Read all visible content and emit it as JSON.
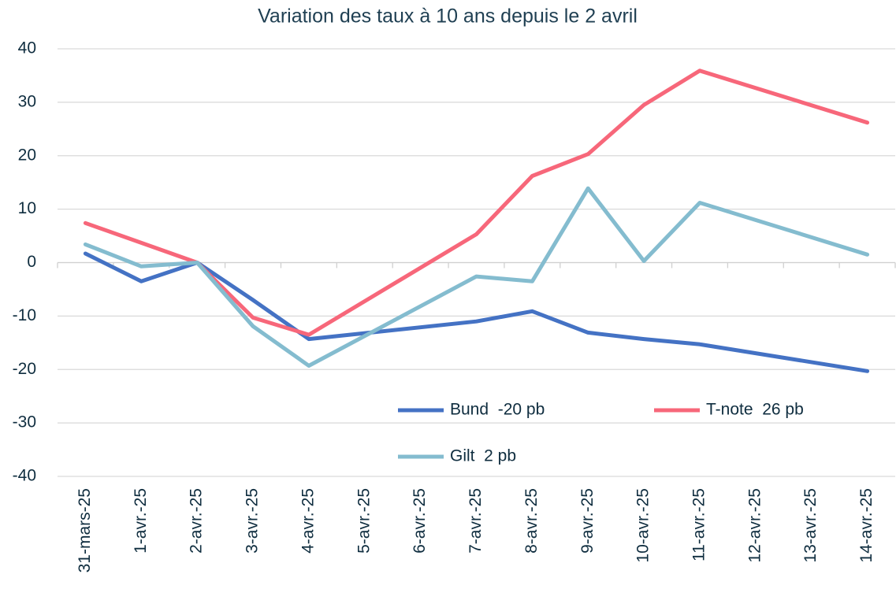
{
  "chart_data": {
    "type": "line",
    "title": "Variation des taux à 10 ans depuis le 2 avril",
    "categories": [
      "31-mars-25",
      "1-avr.-25",
      "2-avr.-25",
      "3-avr.-25",
      "4-avr.-25",
      "5-avr.-25",
      "6-avr.-25",
      "7-avr.-25",
      "8-avr.-25",
      "9-avr.-25",
      "10-avr.-25",
      "11-avr.-25",
      "12-avr.-25",
      "13-avr.-25",
      "14-avr.-25"
    ],
    "x": [
      "31-mars-25",
      "1-avr.-25",
      "2-avr.-25",
      "3-avr.-25",
      "4-avr.-25",
      "7-avr.-25",
      "8-avr.-25",
      "9-avr.-25",
      "10-avr.-25",
      "11-avr.-25",
      "14-avr.-25"
    ],
    "series": [
      {
        "name": "Bund  -20 pb",
        "color": "#4472c4",
        "values": [
          1.7,
          -3.5,
          0,
          -7,
          -14.3,
          -11,
          -9.1,
          -13.1,
          -14.3,
          -15.3,
          -20.3
        ]
      },
      {
        "name": "T-note  26 pb",
        "color": "#f7677a",
        "values": [
          7.4,
          3.7,
          0,
          -10.3,
          -13.5,
          5.3,
          16.2,
          20.3,
          29.5,
          35.9,
          26.2
        ]
      },
      {
        "name": "Gilt  2 pb",
        "color": "#84bccf",
        "values": [
          3.4,
          -0.7,
          0,
          -11.9,
          -19.3,
          -2.6,
          -3.5,
          13.9,
          0.3,
          11.2,
          1.5
        ]
      }
    ],
    "ylim": [
      -40,
      40
    ],
    "yticks": [
      -40,
      -30,
      -20,
      -10,
      0,
      10,
      20,
      30,
      40
    ],
    "grid": true
  }
}
